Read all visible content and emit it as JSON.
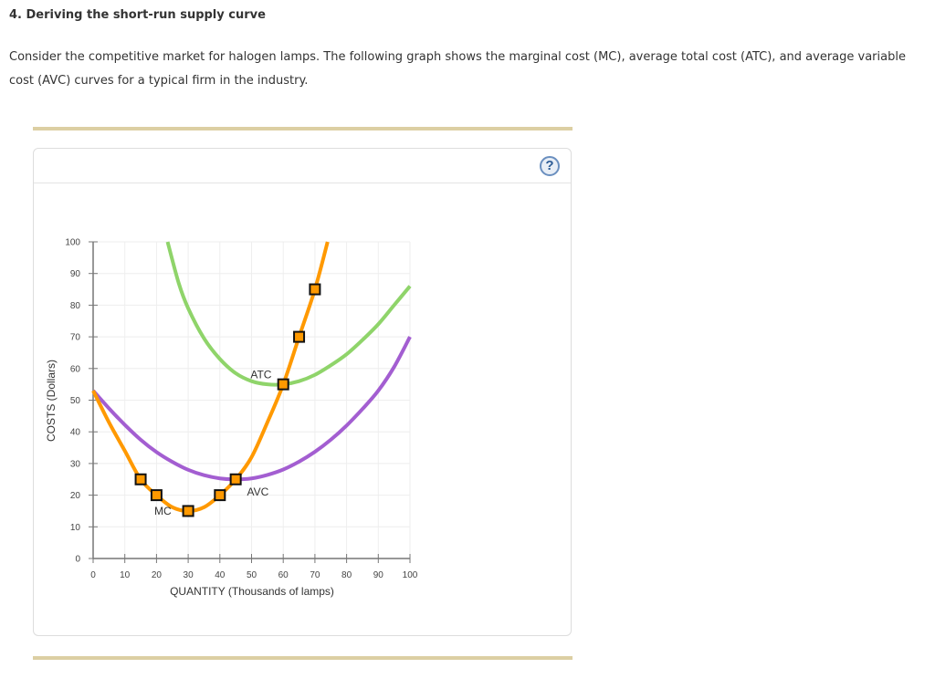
{
  "question": {
    "title": "4. Deriving the short-run supply curve",
    "text": "Consider the competitive market for halogen lamps. The following graph shows the marginal cost (MC), average total cost (ATC), and average variable cost (AVC) curves for a typical firm in the industry."
  },
  "panel": {
    "help_label": "?"
  },
  "colors": {
    "mc": "#ff9900",
    "atc": "#8fd46a",
    "avc": "#a35ed1",
    "marker_fill": "#ff9900",
    "marker_stroke": "#111111",
    "grid": "#eeeeee",
    "axis": "#777777",
    "rule": "#dccfa3"
  },
  "chart_data": {
    "type": "line",
    "title": "",
    "xlabel": "QUANTITY (Thousands of lamps)",
    "ylabel": "COSTS (Dollars)",
    "xlim": [
      0,
      100
    ],
    "ylim": [
      0,
      100
    ],
    "x_ticks": [
      0,
      10,
      20,
      30,
      40,
      50,
      60,
      70,
      80,
      90,
      100
    ],
    "y_ticks": [
      0,
      10,
      20,
      30,
      40,
      50,
      60,
      70,
      80,
      90,
      100
    ],
    "grid": true,
    "legend": "inline curve labels",
    "series": [
      {
        "name": "MC",
        "label": "MC",
        "label_pos": [
          22,
          15
        ],
        "points": [
          [
            0,
            53
          ],
          [
            5,
            43
          ],
          [
            10,
            34
          ],
          [
            15,
            25
          ],
          [
            20,
            20
          ],
          [
            25,
            16.2
          ],
          [
            30,
            15
          ],
          [
            35,
            16.2
          ],
          [
            40,
            20
          ],
          [
            45,
            25
          ],
          [
            50,
            32
          ],
          [
            55,
            43
          ],
          [
            60,
            55
          ],
          [
            65,
            70
          ],
          [
            70,
            85
          ],
          [
            74,
            100
          ]
        ],
        "markers": [
          [
            15,
            25
          ],
          [
            20,
            20
          ],
          [
            30,
            15
          ],
          [
            40,
            20
          ],
          [
            45,
            25
          ],
          [
            60,
            55
          ],
          [
            65,
            70
          ],
          [
            70,
            85
          ]
        ]
      },
      {
        "name": "ATC",
        "label": "ATC",
        "label_pos": [
          53,
          58
        ],
        "points": [
          [
            23.5,
            100
          ],
          [
            27,
            87
          ],
          [
            30,
            79
          ],
          [
            35,
            69.5
          ],
          [
            40,
            63
          ],
          [
            45,
            58.5
          ],
          [
            50,
            56
          ],
          [
            55,
            55
          ],
          [
            60,
            55
          ],
          [
            65,
            56
          ],
          [
            70,
            58
          ],
          [
            75,
            61
          ],
          [
            80,
            64.5
          ],
          [
            85,
            69
          ],
          [
            90,
            74
          ],
          [
            95,
            80
          ],
          [
            100,
            86
          ]
        ]
      },
      {
        "name": "AVC",
        "label": "AVC",
        "label_pos": [
          52,
          21
        ],
        "points": [
          [
            0,
            53
          ],
          [
            5,
            47.4
          ],
          [
            10,
            42.2
          ],
          [
            15,
            37.5
          ],
          [
            20,
            33.6
          ],
          [
            25,
            30.5
          ],
          [
            30,
            28
          ],
          [
            35,
            26.3
          ],
          [
            40,
            25.3
          ],
          [
            45,
            25
          ],
          [
            50,
            25.3
          ],
          [
            55,
            26.4
          ],
          [
            60,
            28.1
          ],
          [
            65,
            30.6
          ],
          [
            70,
            33.7
          ],
          [
            75,
            37.5
          ],
          [
            80,
            42
          ],
          [
            85,
            47.2
          ],
          [
            90,
            53
          ],
          [
            95,
            60.5
          ],
          [
            100,
            70
          ]
        ]
      }
    ]
  }
}
